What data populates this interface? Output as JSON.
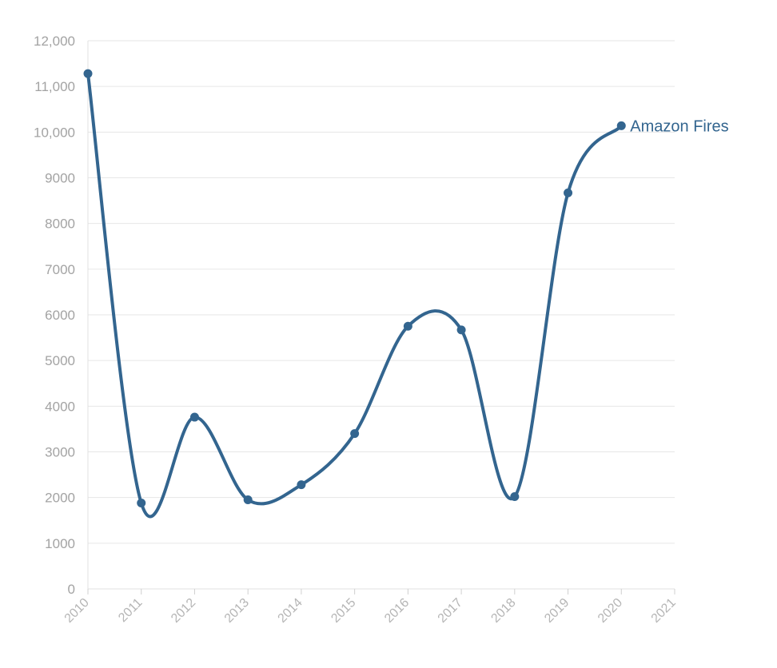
{
  "chart_data": {
    "type": "line",
    "title": "",
    "xlabel": "",
    "ylabel": "",
    "x": [
      2010,
      2011,
      2012,
      2013,
      2014,
      2015,
      2016,
      2017,
      2018,
      2019,
      2020
    ],
    "x_ticks": [
      "2010",
      "2011",
      "2012",
      "2013",
      "2014",
      "2015",
      "2016",
      "2017",
      "2018",
      "2019",
      "2020",
      "2021"
    ],
    "xlim": [
      2010,
      2021
    ],
    "ylim": [
      0,
      12000
    ],
    "y_ticks": [
      "0",
      "1000",
      "2000",
      "3000",
      "4000",
      "5000",
      "6000",
      "7000",
      "8000",
      "9000",
      "10,000",
      "11,000",
      "12,000"
    ],
    "grid": "horizontal",
    "legend": "inline-end-label",
    "series": [
      {
        "name": "Amazon Fires",
        "color": "#33658f",
        "values": [
          11280,
          1880,
          3760,
          1950,
          2280,
          3400,
          5750,
          5670,
          2020,
          8670,
          10140
        ]
      }
    ]
  }
}
